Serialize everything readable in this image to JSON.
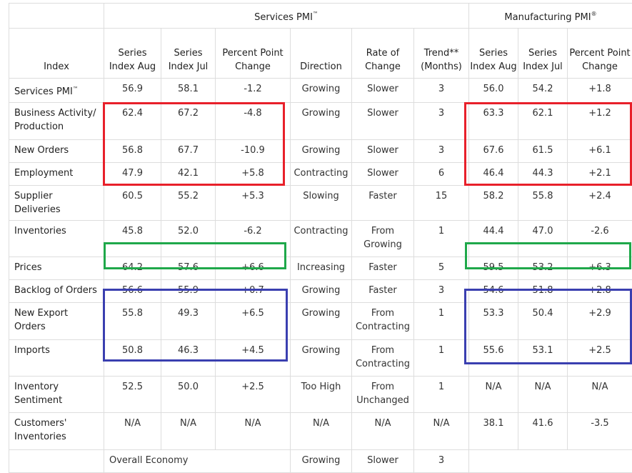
{
  "groups": {
    "services": "Services PMI",
    "services_mark": "™",
    "manufacturing": "Manufacturing PMI",
    "manufacturing_mark": "®"
  },
  "columns": {
    "index": "Index",
    "s_aug": "Series Index Aug",
    "s_jul": "Series Index Jul",
    "s_change": "Percent Point Change",
    "direction": "Direction",
    "rate": "Rate of Change",
    "trend": "Trend** (Months)",
    "m_aug": "Series Index Aug",
    "m_jul": "Series Index Jul",
    "m_change": "Percent Point Change"
  },
  "rows": [
    {
      "label": "Services PMI",
      "mark": "™",
      "s_aug": "56.9",
      "s_jul": "58.1",
      "s_change": "-1.2",
      "direction": "Growing",
      "rate": "Slower",
      "trend": "3",
      "m_aug": "56.0",
      "m_jul": "54.2",
      "m_change": "+1.8"
    },
    {
      "label": "Business Activity/ Production",
      "mark": "",
      "s_aug": "62.4",
      "s_jul": "67.2",
      "s_change": "-4.8",
      "direction": "Growing",
      "rate": "Slower",
      "trend": "3",
      "m_aug": "63.3",
      "m_jul": "62.1",
      "m_change": "+1.2"
    },
    {
      "label": "New Orders",
      "mark": "",
      "s_aug": "56.8",
      "s_jul": "67.7",
      "s_change": "-10.9",
      "direction": "Growing",
      "rate": "Slower",
      "trend": "3",
      "m_aug": "67.6",
      "m_jul": "61.5",
      "m_change": "+6.1"
    },
    {
      "label": "Employment",
      "mark": "",
      "s_aug": "47.9",
      "s_jul": "42.1",
      "s_change": "+5.8",
      "direction": "Contracting",
      "rate": "Slower",
      "trend": "6",
      "m_aug": "46.4",
      "m_jul": "44.3",
      "m_change": "+2.1"
    },
    {
      "label": "Supplier Deliveries",
      "mark": "",
      "s_aug": "60.5",
      "s_jul": "55.2",
      "s_change": "+5.3",
      "direction": "Slowing",
      "rate": "Faster",
      "trend": "15",
      "m_aug": "58.2",
      "m_jul": "55.8",
      "m_change": "+2.4"
    },
    {
      "label": "Inventories",
      "mark": "",
      "s_aug": "45.8",
      "s_jul": "52.0",
      "s_change": "-6.2",
      "direction": "Contracting",
      "rate": "From Growing",
      "trend": "1",
      "m_aug": "44.4",
      "m_jul": "47.0",
      "m_change": "-2.6"
    },
    {
      "label": "Prices",
      "mark": "",
      "s_aug": "64.2",
      "s_jul": "57.6",
      "s_change": "+6.6",
      "direction": "Increasing",
      "rate": "Faster",
      "trend": "5",
      "m_aug": "59.5",
      "m_jul": "53.2",
      "m_change": "+6.3"
    },
    {
      "label": "Backlog of Orders",
      "mark": "",
      "s_aug": "56.6",
      "s_jul": "55.9",
      "s_change": "+0.7",
      "direction": "Growing",
      "rate": "Faster",
      "trend": "3",
      "m_aug": "54.6",
      "m_jul": "51.8",
      "m_change": "+2.8"
    },
    {
      "label": "New Export Orders",
      "mark": "",
      "s_aug": "55.8",
      "s_jul": "49.3",
      "s_change": "+6.5",
      "direction": "Growing",
      "rate": "From Contracting",
      "trend": "1",
      "m_aug": "53.3",
      "m_jul": "50.4",
      "m_change": "+2.9"
    },
    {
      "label": "Imports",
      "mark": "",
      "s_aug": "50.8",
      "s_jul": "46.3",
      "s_change": "+4.5",
      "direction": "Growing",
      "rate": "From Contracting",
      "trend": "1",
      "m_aug": "55.6",
      "m_jul": "53.1",
      "m_change": "+2.5"
    },
    {
      "label": "Inventory Sentiment",
      "mark": "",
      "s_aug": "52.5",
      "s_jul": "50.0",
      "s_change": "+2.5",
      "direction": "Too High",
      "rate": "From Unchanged",
      "trend": "1",
      "m_aug": "N/A",
      "m_jul": "N/A",
      "m_change": "N/A"
    },
    {
      "label": "Customers' Inventories",
      "mark": "",
      "s_aug": "N/A",
      "s_jul": "N/A",
      "s_change": "N/A",
      "direction": "N/A",
      "rate": "N/A",
      "trend": "N/A",
      "m_aug": "38.1",
      "m_jul": "41.6",
      "m_change": "-3.5"
    }
  ],
  "overall": {
    "label": "Overall Economy",
    "direction": "Growing",
    "rate": "Slower",
    "trend": "3"
  },
  "highlight_colors": {
    "red": "#e8202a",
    "green": "#1fa84a",
    "blue": "#3a3fb0"
  }
}
